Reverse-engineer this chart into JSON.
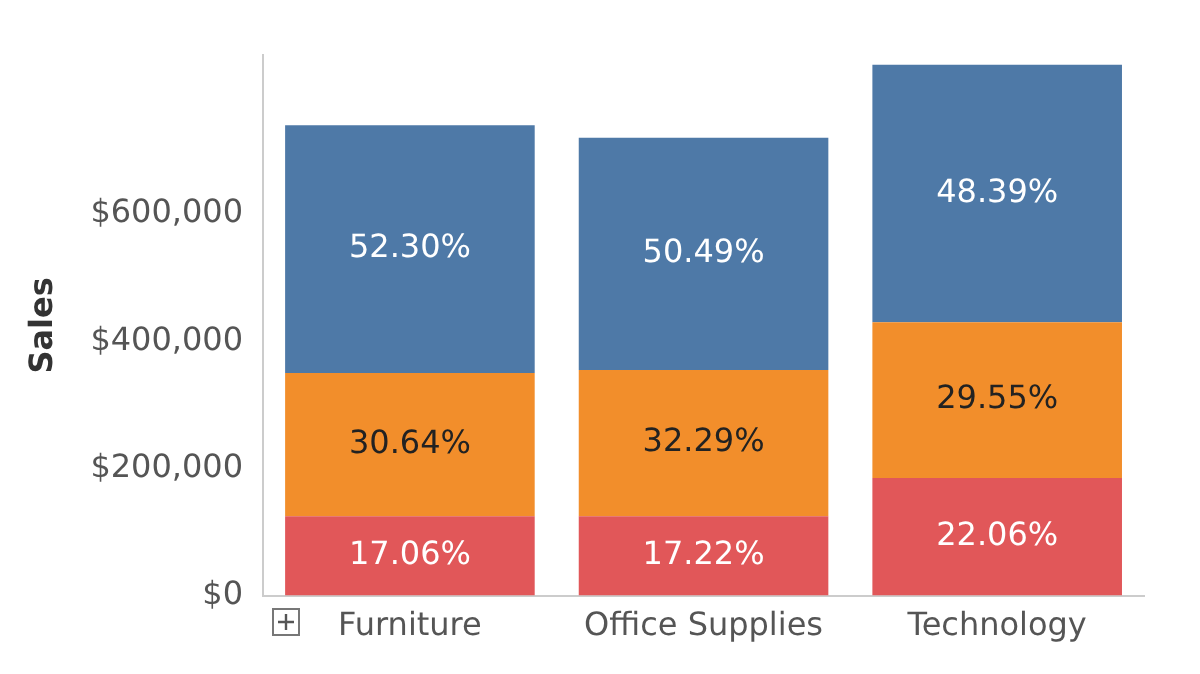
{
  "chart_data": {
    "type": "bar",
    "stacked": true,
    "ylabel": "Sales",
    "categories": [
      "Furniture",
      "Office Supplies",
      "Technology"
    ],
    "series": [
      {
        "color": "#e15759",
        "values": [
          125000,
          125000,
          185000
        ]
      },
      {
        "color": "#f28e2b",
        "values": [
          225000,
          230000,
          245000
        ]
      },
      {
        "color": "#4e79a7",
        "values": [
          390000,
          365000,
          405000
        ]
      }
    ],
    "annotations": [
      "17.06%",
      "17.22%",
      "22.06%",
      "30.64%",
      "32.29%",
      "29.55%",
      "52.30%",
      "50.49%",
      "48.39%"
    ],
    "ylim": [
      0,
      850000
    ],
    "yticks": [
      {
        "value": 0,
        "label": "$0"
      },
      {
        "value": 200000,
        "label": "$200,000"
      },
      {
        "value": 400000,
        "label": "$400,000"
      },
      {
        "value": 600000,
        "label": "$600,000"
      }
    ],
    "grid": false,
    "legend": false
  }
}
